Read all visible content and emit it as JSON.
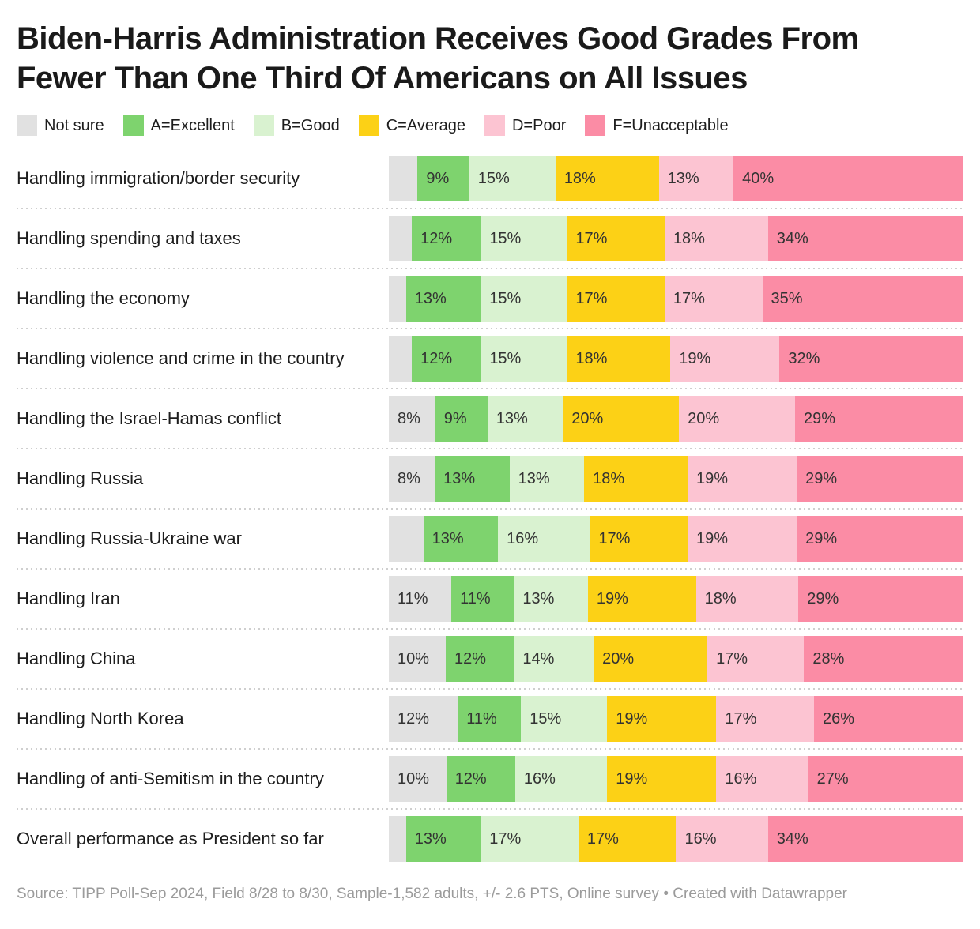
{
  "title": "Biden-Harris Administration Receives Good Grades From Fewer Than One Third Of Americans on All Issues",
  "legend": [
    {
      "label": "Not sure",
      "color": "#e1e1e1"
    },
    {
      "label": "A=Excellent",
      "color": "#7ed36e"
    },
    {
      "label": "B=Good",
      "color": "#d9f2d0"
    },
    {
      "label": "C=Average",
      "color": "#fcd116"
    },
    {
      "label": "D=Poor",
      "color": "#fcc4d2"
    },
    {
      "label": "F=Unacceptable",
      "color": "#fb8ca5"
    }
  ],
  "chart_data": {
    "type": "bar",
    "stacked": true,
    "orientation": "horizontal",
    "normalized_to": 100,
    "series_names": [
      "Not sure",
      "A=Excellent",
      "B=Good",
      "C=Average",
      "D=Poor",
      "F=Unacceptable"
    ],
    "note": "Gray 'Not sure' segments are unlabeled in rows where the value is small; values inferred from remainder to 100",
    "rows": [
      {
        "category": "Handling immigration/border security",
        "values": [
          5,
          9,
          15,
          18,
          13,
          40
        ],
        "labels": [
          "",
          "9%",
          "15%",
          "18%",
          "13%",
          "40%"
        ]
      },
      {
        "category": "Handling spending and taxes",
        "values": [
          4,
          12,
          15,
          17,
          18,
          34
        ],
        "labels": [
          "",
          "12%",
          "15%",
          "17%",
          "18%",
          "34%"
        ]
      },
      {
        "category": "Handling the economy",
        "values": [
          3,
          13,
          15,
          17,
          17,
          35
        ],
        "labels": [
          "",
          "13%",
          "15%",
          "17%",
          "17%",
          "35%"
        ]
      },
      {
        "category": "Handling violence and crime in the country",
        "values": [
          4,
          12,
          15,
          18,
          19,
          32
        ],
        "labels": [
          "",
          "12%",
          "15%",
          "18%",
          "19%",
          "32%"
        ]
      },
      {
        "category": "Handling the Israel-Hamas conflict",
        "values": [
          8,
          9,
          13,
          20,
          20,
          29
        ],
        "labels": [
          "8%",
          "9%",
          "13%",
          "20%",
          "20%",
          "29%"
        ]
      },
      {
        "category": "Handling Russia",
        "values": [
          8,
          13,
          13,
          18,
          19,
          29
        ],
        "labels": [
          "8%",
          "13%",
          "13%",
          "18%",
          "19%",
          "29%"
        ]
      },
      {
        "category": "Handling Russia-Ukraine war",
        "values": [
          6,
          13,
          16,
          17,
          19,
          29
        ],
        "labels": [
          "",
          "13%",
          "16%",
          "17%",
          "19%",
          "29%"
        ]
      },
      {
        "category": "Handling Iran",
        "values": [
          11,
          11,
          13,
          19,
          18,
          29
        ],
        "labels": [
          "11%",
          "11%",
          "13%",
          "19%",
          "18%",
          "29%"
        ]
      },
      {
        "category": "Handling China",
        "values": [
          10,
          12,
          14,
          20,
          17,
          28
        ],
        "labels": [
          "10%",
          "12%",
          "14%",
          "20%",
          "17%",
          "28%"
        ]
      },
      {
        "category": "Handling North Korea",
        "values": [
          12,
          11,
          15,
          19,
          17,
          26
        ],
        "labels": [
          "12%",
          "11%",
          "15%",
          "19%",
          "17%",
          "26%"
        ]
      },
      {
        "category": "Handling of anti-Semitism in the country",
        "values": [
          10,
          12,
          16,
          19,
          16,
          27
        ],
        "labels": [
          "10%",
          "12%",
          "16%",
          "19%",
          "16%",
          "27%"
        ]
      },
      {
        "category": "Overall performance as President so far",
        "values": [
          3,
          13,
          17,
          17,
          16,
          34
        ],
        "labels": [
          "",
          "13%",
          "17%",
          "17%",
          "16%",
          "34%"
        ]
      }
    ]
  },
  "footer": "Source: TIPP Poll-Sep 2024, Field 8/28 to 8/30, Sample-1,582 adults, +/- 2.6 PTS, Online survey • Created with Datawrapper"
}
